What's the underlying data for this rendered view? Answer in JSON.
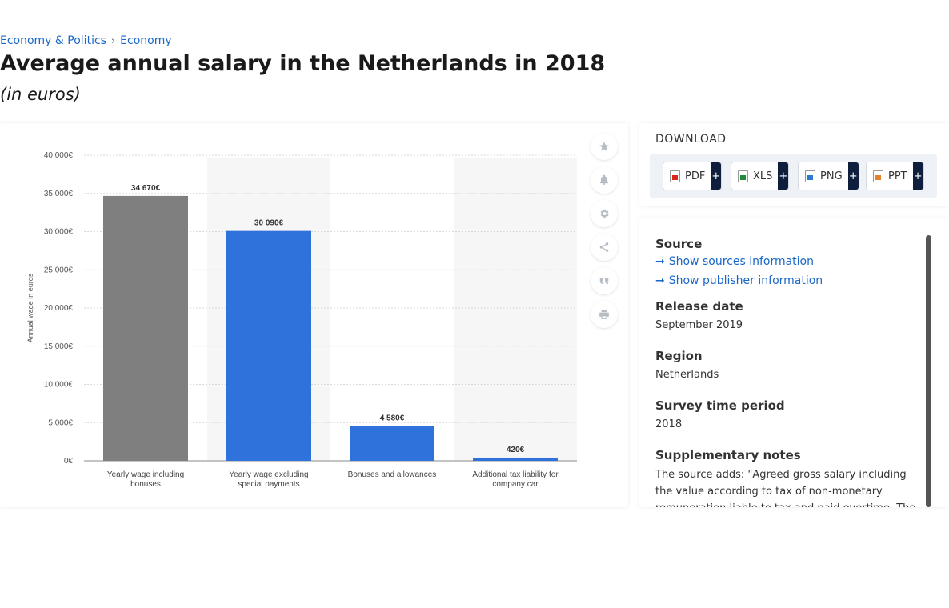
{
  "breadcrumb": {
    "items": [
      "Economy & Politics",
      "Economy"
    ],
    "separator": "›"
  },
  "title": "Average annual salary in the Netherlands in 2018",
  "subtitle": "(in euros)",
  "toolbar": {
    "icons": [
      "star-icon",
      "bell-icon",
      "gear-icon",
      "share-icon",
      "quote-icon",
      "print-icon"
    ]
  },
  "download": {
    "title": "DOWNLOAD",
    "buttons": [
      {
        "label": "PDF",
        "icon": "pdf-file-icon",
        "plus": "+"
      },
      {
        "label": "XLS",
        "icon": "xls-file-icon",
        "plus": "+"
      },
      {
        "label": "PNG",
        "icon": "png-file-icon",
        "plus": "+"
      },
      {
        "label": "PPT",
        "icon": "ppt-file-icon",
        "plus": "+"
      }
    ]
  },
  "info": {
    "source_label": "Source",
    "show_sources": "Show sources information",
    "show_publisher": "Show publisher information",
    "release_label": "Release date",
    "release_value": "September 2019",
    "region_label": "Region",
    "region_value": "Netherlands",
    "period_label": "Survey time period",
    "period_value": "2018",
    "notes_label": "Supplementary notes",
    "notes_value": "The source adds: \"Agreed gross salary including the value according to tax of non-monetary remuneration liable to tax and paid overtime. The"
  },
  "chart_data": {
    "type": "bar",
    "categories": [
      [
        "Yearly wage including",
        "bonuses"
      ],
      [
        "Yearly wage excluding",
        "special payments"
      ],
      [
        "Bonuses and allowances"
      ],
      [
        "Additional tax liability for",
        "company car"
      ]
    ],
    "values": [
      34670,
      30090,
      4580,
      420
    ],
    "data_labels": [
      "34 670€",
      "30 090€",
      "4 580€",
      "420€"
    ],
    "bar_colors": [
      "#7f7f7f",
      "#2f72db",
      "#2f72db",
      "#2f72db"
    ],
    "ylabel": "Annual wage in euros",
    "ylim": [
      0,
      40000
    ],
    "yticks": [
      0,
      5000,
      10000,
      15000,
      20000,
      25000,
      30000,
      35000,
      40000
    ],
    "ytick_labels": [
      "0€",
      "5 000€",
      "10 000€",
      "15 000€",
      "20 000€",
      "25 000€",
      "30 000€",
      "35 000€",
      "40 000€"
    ],
    "grid": true
  }
}
